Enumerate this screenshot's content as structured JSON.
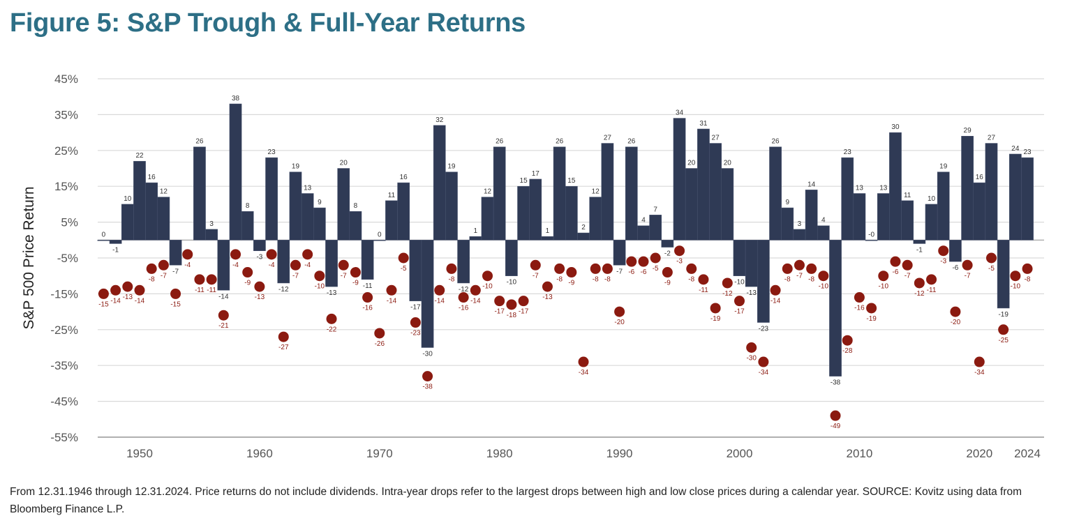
{
  "title": "Figure 5: S&P Trough & Full-Year Returns",
  "caption": "From 12.31.1946 through 12.31.2024. Price returns do not include dividends. Intra-year drops refer to the largest drops between high and low close prices during a calendar year. SOURCE: Kovitz using data from Bloomberg Finance L.P.",
  "chart_data": {
    "type": "bar",
    "title": "Figure 5: S&P Trough & Full-Year Returns",
    "xlabel": "",
    "ylabel": "S&P 500 Price Return",
    "ylim": [
      -55,
      45
    ],
    "yticks": [
      "45%",
      "35%",
      "25%",
      "15%",
      "5%",
      "-5%",
      "-15%",
      "-25%",
      "-35%",
      "-45%",
      "-55%"
    ],
    "ytick_values": [
      45,
      35,
      25,
      15,
      5,
      -5,
      -15,
      -25,
      -35,
      -45,
      -55
    ],
    "xticks": [
      "1950",
      "1960",
      "1970",
      "1980",
      "1990",
      "2000",
      "2010",
      "2020",
      "2024"
    ],
    "xtick_values": [
      1950,
      1960,
      1970,
      1980,
      1990,
      2000,
      2010,
      2020,
      2024
    ],
    "grid": true,
    "colors": {
      "bars": "#2f3a55",
      "drops": "#8b1a10",
      "title": "#2d6f86"
    },
    "x": [
      1947,
      1948,
      1949,
      1950,
      1951,
      1952,
      1953,
      1954,
      1955,
      1956,
      1957,
      1958,
      1959,
      1960,
      1961,
      1962,
      1963,
      1964,
      1965,
      1966,
      1967,
      1968,
      1969,
      1970,
      1971,
      1972,
      1973,
      1974,
      1975,
      1976,
      1977,
      1978,
      1979,
      1980,
      1981,
      1982,
      1983,
      1984,
      1985,
      1986,
      1987,
      1988,
      1989,
      1990,
      1991,
      1992,
      1993,
      1994,
      1995,
      1996,
      1997,
      1998,
      1999,
      2000,
      2001,
      2002,
      2003,
      2004,
      2005,
      2006,
      2007,
      2008,
      2009,
      2010,
      2011,
      2012,
      2013,
      2014,
      2015,
      2016,
      2017,
      2018,
      2019,
      2020,
      2021,
      2022,
      2023,
      2024
    ],
    "series": [
      {
        "type": "bar",
        "values": [
          0,
          -1,
          10,
          22,
          16,
          12,
          -7,
          null,
          26,
          3,
          -14,
          38,
          8,
          -3,
          23,
          -12,
          19,
          13,
          9,
          -13,
          20,
          8,
          -11,
          0,
          11,
          16,
          -17,
          -30,
          32,
          19,
          -12,
          1,
          12,
          26,
          -10,
          15,
          17,
          1,
          26,
          15,
          2,
          12,
          27,
          -7,
          26,
          4,
          7,
          -2,
          34,
          20,
          31,
          27,
          20,
          -10,
          -13,
          -23,
          26,
          9,
          3,
          14,
          4,
          -38,
          23,
          13,
          0,
          13,
          30,
          11,
          -1,
          10,
          19,
          -6,
          29,
          16,
          27,
          -19,
          24,
          23
        ],
        "labels": [
          "0",
          "-1",
          "10",
          "22",
          "16",
          "12",
          "-7",
          null,
          "26",
          "3",
          "-14",
          "38",
          "8",
          "-3",
          "23",
          "-12",
          "19",
          "13",
          "9",
          "-13",
          "20",
          "8",
          "-11",
          "0",
          "11",
          "16",
          "-17",
          "-30",
          "32",
          "19",
          "-12",
          "1",
          "12",
          "26",
          "-10",
          "15",
          "17",
          "1",
          "26",
          "15",
          "2",
          "12",
          "27",
          "-7",
          "26",
          "4",
          "7",
          "-2",
          "34",
          "20",
          "31",
          "27",
          "20",
          "-10",
          "-13",
          "-23",
          "26",
          "9",
          "3",
          "14",
          "4",
          "-38",
          "23",
          "13",
          "-0",
          "13",
          "30",
          "11",
          "-1",
          "10",
          "19",
          "-6",
          "29",
          "16",
          "27",
          "-19",
          "24",
          "23"
        ]
      },
      {
        "type": "scatter",
        "values": [
          -15,
          -14,
          -13,
          -14,
          -8,
          -7,
          -15,
          -4,
          -11,
          -11,
          -21,
          -4,
          -9,
          -13,
          -4,
          -27,
          -7,
          -4,
          -10,
          -22,
          -7,
          -9,
          -16,
          -26,
          -14,
          -5,
          -23,
          -38,
          -14,
          -8,
          -16,
          -14,
          -10,
          -17,
          -18,
          -17,
          -7,
          -13,
          -8,
          -9,
          -34,
          -8,
          -8,
          -20,
          -6,
          -6,
          -5,
          -9,
          -3,
          -8,
          -11,
          -19,
          -12,
          -17,
          -30,
          -34,
          -14,
          -8,
          -7,
          -8,
          -10,
          -49,
          -28,
          -16,
          -19,
          -10,
          -6,
          -7,
          -12,
          -11,
          -3,
          -20,
          -7,
          -34,
          -5,
          -25,
          -10,
          -8
        ]
      }
    ]
  }
}
